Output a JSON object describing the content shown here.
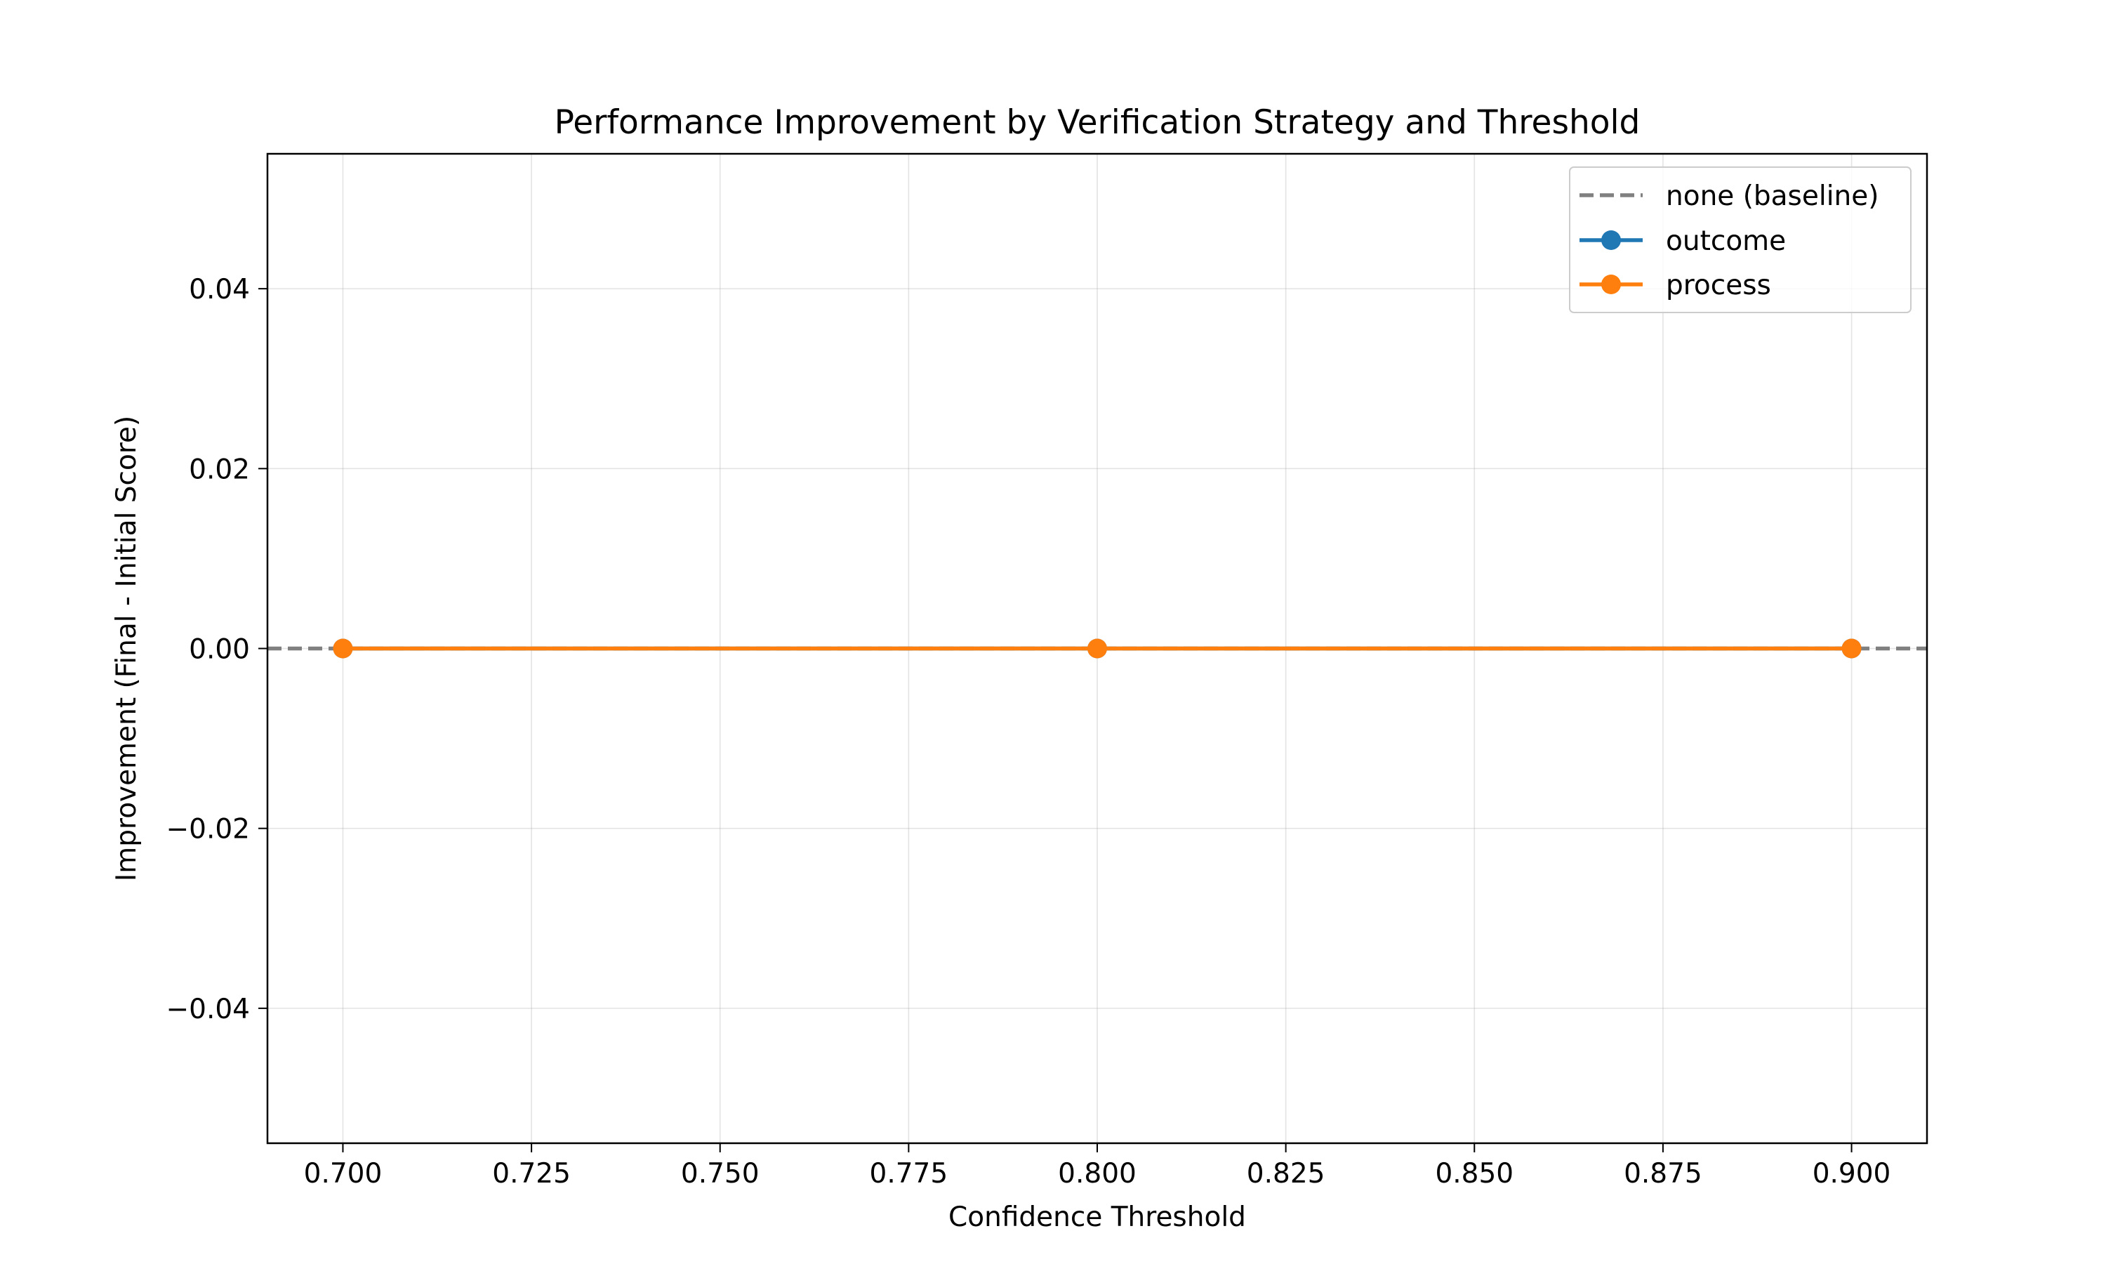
{
  "chart_data": {
    "type": "line",
    "title": "Performance Improvement by Verification Strategy and Threshold",
    "xlabel": "Confidence Threshold",
    "ylabel": "Improvement (Final - Initial Score)",
    "xlim": [
      0.69,
      0.91
    ],
    "ylim": [
      -0.055,
      0.055
    ],
    "x_ticks": [
      0.7,
      0.725,
      0.75,
      0.775,
      0.8,
      0.825,
      0.85,
      0.875,
      0.9
    ],
    "x_tick_labels": [
      "0.700",
      "0.725",
      "0.750",
      "0.775",
      "0.800",
      "0.825",
      "0.850",
      "0.875",
      "0.900"
    ],
    "y_ticks": [
      -0.04,
      -0.02,
      0.0,
      0.02,
      0.04
    ],
    "y_tick_labels": [
      "−0.04",
      "−0.02",
      "0.00",
      "0.02",
      "0.04"
    ],
    "grid": true,
    "legend_position": "top-right",
    "baseline": {
      "name": "none (baseline)",
      "y": 0.0,
      "color": "#808080",
      "style": "dashed"
    },
    "series": [
      {
        "name": "outcome",
        "x": [
          0.7,
          0.8,
          0.9
        ],
        "values": [
          0.0,
          0.0,
          0.0
        ],
        "color": "#1f77b4",
        "marker": "circle"
      },
      {
        "name": "process",
        "x": [
          0.7,
          0.8,
          0.9
        ],
        "values": [
          0.0,
          0.0,
          0.0
        ],
        "color": "#ff7f0e",
        "marker": "circle"
      }
    ]
  }
}
